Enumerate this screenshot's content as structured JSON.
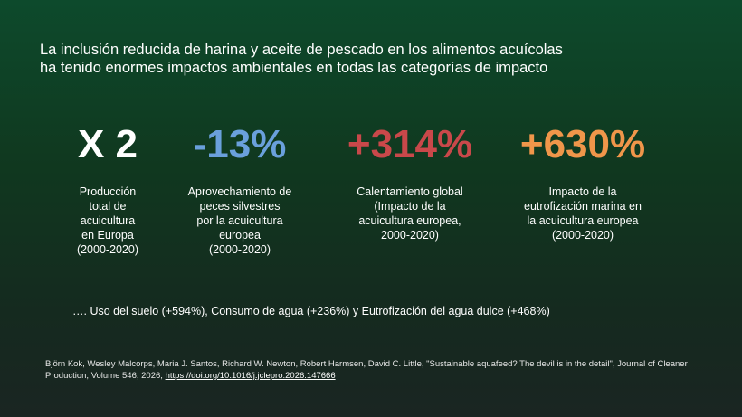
{
  "slide": {
    "title": "La inclusión reducida de harina y aceite de pescado en los alimentos acuícolas ha tenido enormes impactos ambientales en todas las categorías de impacto",
    "colors": {
      "bg_top": "#0d4a2c",
      "bg_bottom": "#1a2522",
      "text": "#ffffff",
      "blue": "#6aa0dc",
      "red": "#c9484a",
      "orange": "#f0964a"
    },
    "stats": [
      {
        "value": "X 2",
        "color": "#ffffff",
        "description": "Producción\ntotal de\nacuicultura\nen Europa\n(2000-2020)"
      },
      {
        "value": "-13%",
        "color": "#6aa0dc",
        "description": "Aprovechamiento de\npeces silvestres\npor la acuicultura\neuropea\n(2000-2020)"
      },
      {
        "value": "+314%",
        "color": "#c9484a",
        "description": "Calentamiento global\n(Impacto de la\nacuicultura europea,\n2000-2020)"
      },
      {
        "value": "+630%",
        "color": "#f0964a",
        "description": "Impacto de la\neutrofización marina en\nla acuicultura europea\n(2000-2020)"
      }
    ],
    "other_impacts": "…. Uso del suelo (+594%), Consumo de agua (+236%) y Eutrofización del agua dulce (+468%)",
    "citation": {
      "text": "Björn Kok, Wesley Malcorps, Maria J. Santos, Richard W. Newton, Robert Harmsen, David C. Little, \"Sustainable aquafeed? The devil is in the detail\", Journal of Cleaner Production, Volume 546, 2026, ",
      "link": "https://doi.org/10.1016/j.jclepro.2026.147666"
    }
  }
}
